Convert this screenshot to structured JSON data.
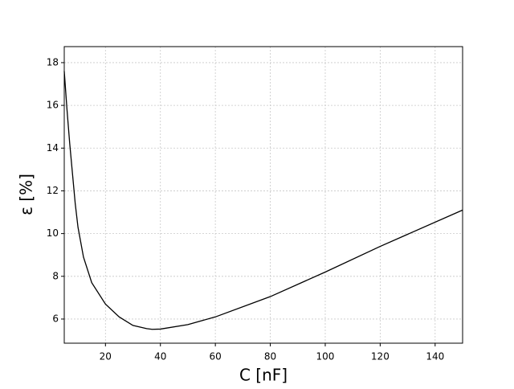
{
  "chart_data": {
    "type": "line",
    "xlabel": "C [nF]",
    "ylabel": "ε [%]",
    "x": [
      5,
      6,
      7,
      8,
      9,
      10,
      12,
      15,
      20,
      25,
      30,
      35,
      37,
      40,
      50,
      60,
      80,
      100,
      120,
      150
    ],
    "series": [
      {
        "name": "ε",
        "color": "#000000",
        "values": [
          17.6,
          15.8,
          14.2,
          12.8,
          11.4,
          10.3,
          8.9,
          7.7,
          6.7,
          6.1,
          5.7,
          5.55,
          5.52,
          5.53,
          5.74,
          6.1,
          7.05,
          8.2,
          9.4,
          11.1
        ]
      }
    ],
    "xlim": [
      5,
      150
    ],
    "ylim": [
      4.87,
      18.75
    ],
    "xticks": [
      20,
      40,
      60,
      80,
      100,
      120,
      140
    ],
    "yticks": [
      6,
      8,
      10,
      12,
      14,
      16,
      18
    ],
    "grid": true
  }
}
